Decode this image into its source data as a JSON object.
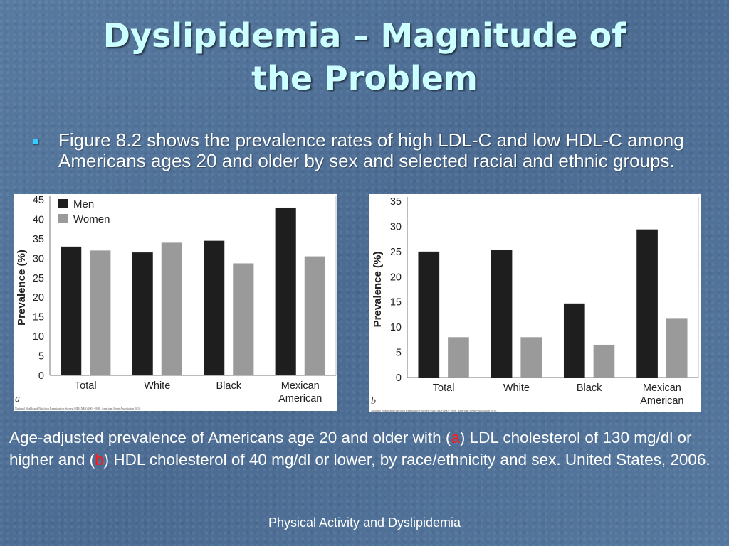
{
  "slide": {
    "title_line1": "Dyslipidemia – Magnitude of",
    "title_line2": "the Problem",
    "bullet": "Figure 8.2 shows the prevalence rates of high LDL-C and low HDL-C among Americans ages 20 and older by sex and selected racial and ethnic groups.",
    "caption": {
      "part1": "Age-adjusted prevalence of Americans age 20 and older with (",
      "a": "a",
      "part2": ") LDL cholesterol of 130 mg/dl or higher and (",
      "b": "b",
      "part3": ") HDL cholesterol of 40 mg/dl or lower, by race/ethnicity and sex. United States, 2006."
    },
    "footer": "Physical Activity and Dyslipidemia"
  },
  "colors": {
    "men": "#1e1e1e",
    "women": "#9a9a9a",
    "title": "#ccffff",
    "bullet": "#33ccff",
    "highlight": "#ff1a1a"
  },
  "chart_data": [
    {
      "type": "bar",
      "panel_label": "a",
      "categories": [
        "Total",
        "White",
        "Black",
        "Mexican\nAmerican"
      ],
      "series": [
        {
          "name": "Men",
          "values": [
            33,
            31.5,
            34.5,
            43
          ]
        },
        {
          "name": "Women",
          "values": [
            32,
            34,
            28.7,
            30.5
          ]
        }
      ],
      "ylabel": "Prevalence (%)",
      "ylim": [
        0,
        45
      ],
      "yticks": [
        0,
        5,
        10,
        15,
        20,
        25,
        30,
        35,
        40,
        45
      ],
      "legend": "top-left",
      "source": "National Health and Nutrition Examination Survey (NHANES) 2001-2006. American Heart Association 2010."
    },
    {
      "type": "bar",
      "panel_label": "b",
      "categories": [
        "Total",
        "White",
        "Black",
        "Mexican\nAmerican"
      ],
      "series": [
        {
          "name": "Men",
          "values": [
            25,
            25.3,
            14.7,
            29.4
          ]
        },
        {
          "name": "Women",
          "values": [
            8,
            8,
            6.5,
            11.8
          ]
        }
      ],
      "ylabel": "Prevalence (%)",
      "ylim": [
        0,
        35
      ],
      "yticks": [
        0,
        5,
        10,
        15,
        20,
        25,
        30,
        35
      ],
      "source": "National Health and Nutrition Examination Survey (NHANES) 2001-2006. American Heart Association 2010."
    }
  ]
}
